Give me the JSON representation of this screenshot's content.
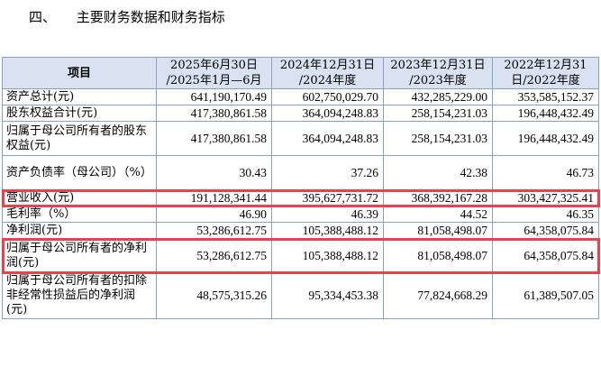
{
  "section": {
    "number": "四、",
    "title": "主要财务数据和财务指标"
  },
  "table": {
    "headers": [
      {
        "line1": "项目",
        "line2": ""
      },
      {
        "line1": "2025年6月30日",
        "line2": "/2025年1月—6月"
      },
      {
        "line1": "2024年12月31日",
        "line2": "/2024年度"
      },
      {
        "line1": "2023年12月31日",
        "line2": "/2023年度"
      },
      {
        "line1": "2022年12月31",
        "line2": "日/2022年度"
      }
    ],
    "rows": [
      {
        "label": "资产总计(元)",
        "values": [
          "641,190,170.49",
          "602,750,029.70",
          "432,285,229.00",
          "353,585,152.37"
        ]
      },
      {
        "label": "股东权益合计(元)",
        "values": [
          "417,380,861.58",
          "364,094,248.83",
          "258,154,231.03",
          "196,448,432.49"
        ]
      },
      {
        "label": "归属于母公司所有者的股东权益(元)",
        "values": [
          "417,380,861.58",
          "364,094,248.83",
          "258,154,231.03",
          "196,448,432.49"
        ]
      },
      {
        "label": "资产负债率（母公司）（%）",
        "values": [
          "30.43",
          "37.26",
          "42.38",
          "46.73"
        ]
      },
      {
        "label": "营业收入(元)",
        "values": [
          "191,128,341.44",
          "395,627,731.72",
          "368,392,167.28",
          "303,427,325.41"
        ]
      },
      {
        "label": "毛利率（%）",
        "values": [
          "46.90",
          "46.39",
          "44.52",
          "46.35"
        ]
      },
      {
        "label": "净利润(元)",
        "values": [
          "53,286,612.75",
          "105,388,488.12",
          "81,058,498.07",
          "64,358,075.84"
        ]
      },
      {
        "label": "归属于母公司所有者的净利润(元)",
        "values": [
          "53,286,612.75",
          "105,388,488.12",
          "81,058,498.07",
          "64,358,075.84"
        ]
      },
      {
        "label": "归属于母公司所有者的扣除非经常性损益后的净利润(元)",
        "values": [
          "48,575,315.26",
          "95,334,453.38",
          "77,824,668.29",
          "61,389,507.05"
        ]
      }
    ]
  },
  "highlight_color": "#e8424e",
  "header_bg": "#d8e2f1"
}
